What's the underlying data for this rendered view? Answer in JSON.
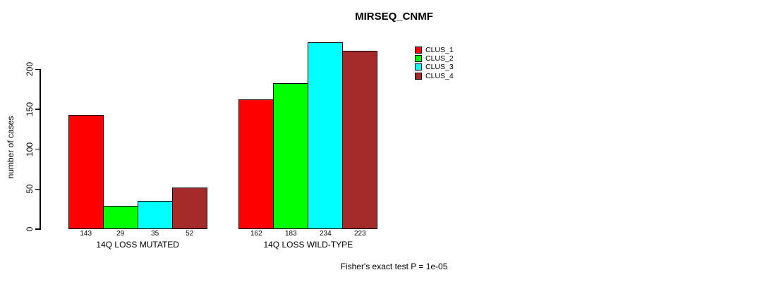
{
  "chart_data": {
    "type": "bar",
    "title": "MIRSEQ_CNMF",
    "ylabel": "number of cases",
    "xlabel": "",
    "categories": [
      "14Q LOSS MUTATED",
      "14Q LOSS WILD-TYPE"
    ],
    "series": [
      {
        "name": "CLUS_1",
        "color": "#ff0000",
        "values": [
          143,
          162
        ]
      },
      {
        "name": "CLUS_2",
        "color": "#00ff00",
        "values": [
          29,
          183
        ]
      },
      {
        "name": "CLUS_3",
        "color": "#00ffff",
        "values": [
          35,
          234
        ]
      },
      {
        "name": "CLUS_4",
        "color": "#a52a2a",
        "values": [
          52,
          223
        ]
      }
    ],
    "bar_value_labels": [
      [
        143,
        29,
        35,
        52
      ],
      [
        162,
        183,
        234,
        223
      ]
    ],
    "yticks": [
      0,
      50,
      100,
      150,
      200
    ],
    "ylim": [
      0,
      240
    ],
    "grid": false,
    "legend_position": "top-right",
    "legend_entries": [
      "CLUS_1",
      "CLUS_2",
      "CLUS_3",
      "CLUS_4"
    ],
    "footnote": "Fisher's exact test P = 1e-05",
    "background_color": "#ffffff",
    "axis_color": "#000000"
  }
}
